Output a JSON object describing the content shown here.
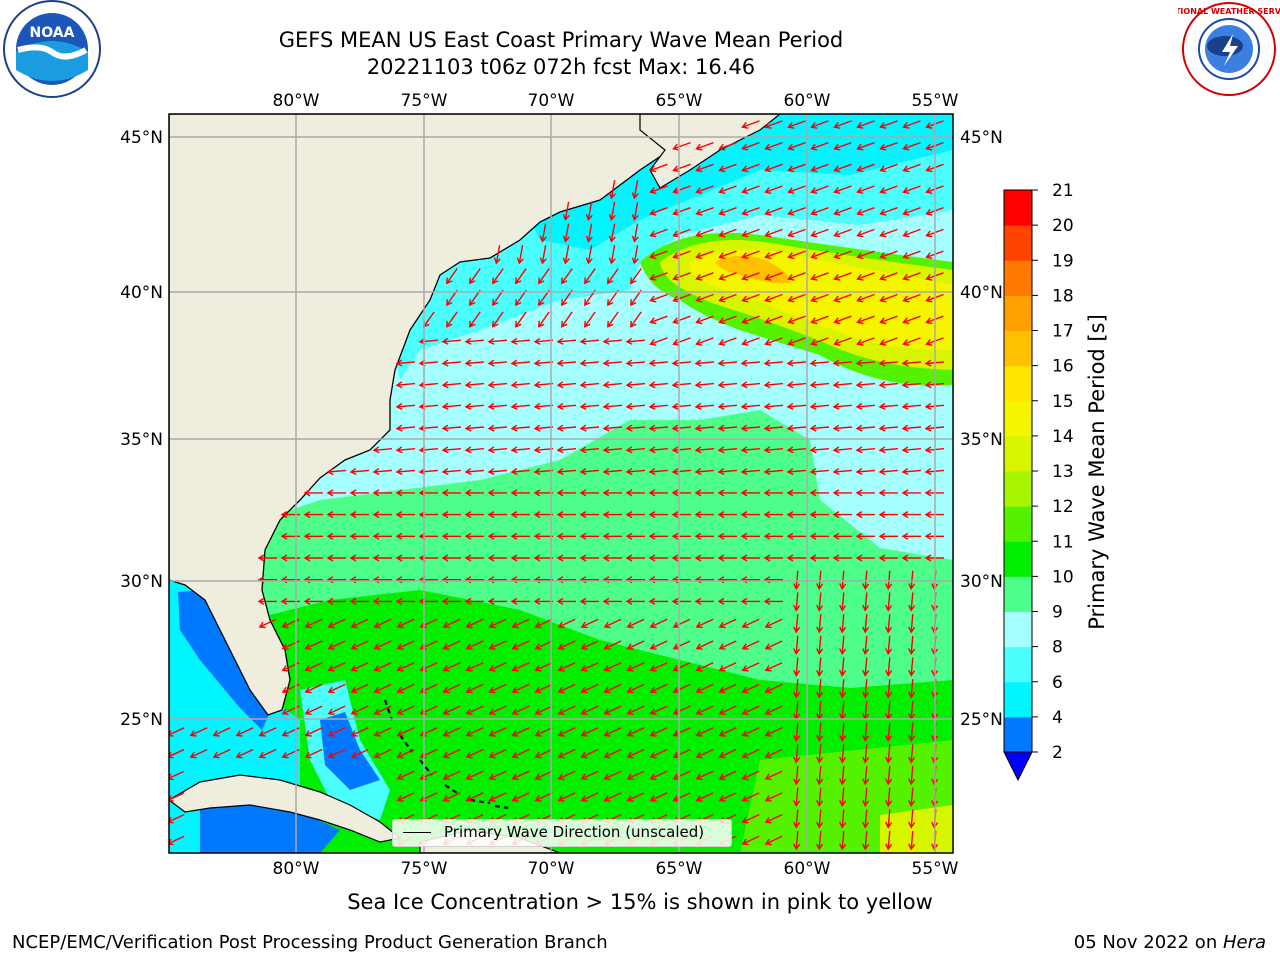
{
  "header": {
    "title_line1": "GEFS MEAN US East Coast Primary Wave Mean Period",
    "title_line2": "20221103 t06z 072h fcst   Max: 16.46"
  },
  "logos": {
    "left": {
      "name": "NOAA",
      "text": "NOAA"
    },
    "right": {
      "name": "National Weather Service",
      "text": "NATIONAL WEATHER SERVICE"
    }
  },
  "map": {
    "lon_labels": [
      "80°W",
      "75°W",
      "70°W",
      "65°W",
      "60°W",
      "55°W"
    ],
    "lat_labels": [
      "45°N",
      "40°N",
      "35°N",
      "30°N",
      "25°N"
    ],
    "legend_label": "Primary Wave Direction (unscaled)",
    "arrow_color": "#ff0000",
    "land_color": "#efedde"
  },
  "colorbar": {
    "label": "Primary Wave Mean Period [s]",
    "ticks": [
      "2",
      "4",
      "6",
      "8",
      "9",
      "10",
      "11",
      "12",
      "13",
      "14",
      "15",
      "16",
      "17",
      "18",
      "19",
      "20",
      "21"
    ],
    "colors": [
      "#0078ff",
      "#00f5ff",
      "#4cffff",
      "#a6ffff",
      "#4dff8a",
      "#00ee00",
      "#55f200",
      "#a8f500",
      "#d8f500",
      "#f5f500",
      "#ffe600",
      "#ffc000",
      "#ff9f00",
      "#ff7800",
      "#ff4400",
      "#ff0000"
    ],
    "under_color": "#0000ff"
  },
  "notes": {
    "sea_ice": "Sea Ice Concentration > 15% is shown in pink to yellow",
    "footer_left": "NCEP/EMC/Verification Post Processing Product Generation Branch",
    "footer_date": "05 Nov 2022 on ",
    "footer_host": "Hera"
  }
}
